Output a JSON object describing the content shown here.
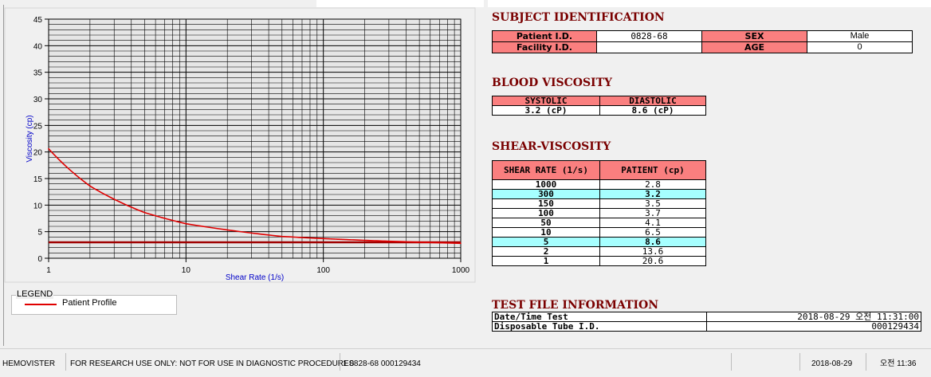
{
  "chart_data": {
    "type": "line",
    "title": "",
    "xlabel": "Shear Rate (1/s)",
    "ylabel": "Viscosity (cp)",
    "x_scale": "log",
    "xlim": [
      1,
      1000
    ],
    "ylim": [
      0,
      45
    ],
    "x_ticks": [
      1,
      10,
      100,
      1000
    ],
    "y_ticks": [
      0,
      5,
      10,
      15,
      20,
      25,
      30,
      35,
      40,
      45
    ],
    "grid": true,
    "legend_title": "LEGEND",
    "series": [
      {
        "name": "Patient Profile",
        "color": "#e00000",
        "x": [
          1,
          2,
          5,
          10,
          50,
          100,
          150,
          300,
          1000
        ],
        "y": [
          20.6,
          13.6,
          8.6,
          6.5,
          4.1,
          3.7,
          3.5,
          3.2,
          2.8
        ]
      },
      {
        "name": "",
        "color": "#a00000",
        "x": [
          1,
          1000
        ],
        "y": [
          3.0,
          3.0
        ]
      }
    ]
  },
  "subject": {
    "heading": "SUBJECT IDENTIFICATION",
    "patient_id_label": "Patient I.D.",
    "patient_id_value": "0828-68",
    "sex_label": "SEX",
    "sex_value": "Male",
    "facility_id_label": "Facility I.D.",
    "facility_id_value": "",
    "age_label": "AGE",
    "age_value": "0"
  },
  "blood_viscosity": {
    "heading": "BLOOD VISCOSITY",
    "systolic_label": "SYSTOLIC",
    "systolic_value": "3.2 (cP)",
    "diastolic_label": "DIASTOLIC",
    "diastolic_value": "8.6 (cP)"
  },
  "shear_viscosity": {
    "heading": "SHEAR-VISCOSITY",
    "col_rate": "SHEAR RATE (1/s)",
    "col_patient": "PATIENT (cp)",
    "rows": [
      {
        "rate": "1000",
        "value": "2.8",
        "highlight": false
      },
      {
        "rate": "300",
        "value": "3.2",
        "highlight": true
      },
      {
        "rate": "150",
        "value": "3.5",
        "highlight": false
      },
      {
        "rate": "100",
        "value": "3.7",
        "highlight": false
      },
      {
        "rate": "50",
        "value": "4.1",
        "highlight": false
      },
      {
        "rate": "10",
        "value": "6.5",
        "highlight": false
      },
      {
        "rate": "5",
        "value": "8.6",
        "highlight": true
      },
      {
        "rate": "2",
        "value": "13.6",
        "highlight": false
      },
      {
        "rate": "1",
        "value": "20.6",
        "highlight": false
      }
    ]
  },
  "test_file": {
    "heading": "TEST FILE INFORMATION",
    "datetime_label": "Date/Time Test",
    "datetime_value": "2018-08-29  오전 11:31:00",
    "tube_label": "Disposable Tube I.D.",
    "tube_value": "000129434"
  },
  "status_bar": {
    "app": "HEMOVISTER",
    "notice": "FOR RESEARCH USE ONLY: NOT FOR USE IN DIAGNOSTIC PROCEDURES",
    "record": "1  0828-68  000129434",
    "date": "2018-08-29",
    "time": "오전 11:36"
  }
}
